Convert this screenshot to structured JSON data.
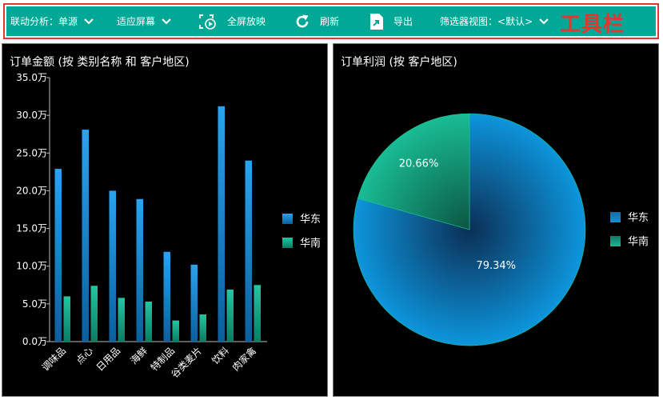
{
  "toolbar": {
    "linkage_label": "联动分析：",
    "linkage_value": "单源",
    "fit_label": "适应屏幕",
    "fullscreen_label": "全屏放映",
    "refresh_label": "刷新",
    "export_label": "导出",
    "filter_view_label": "筛选器视图：",
    "filter_view_value": "<默认>",
    "tag": "工具栏",
    "tag_color": "#e8332e",
    "background_color": "#02a896"
  },
  "colors": {
    "huadong": "#1e8fd8",
    "huanan": "#18b893",
    "panel_bg": "#000000"
  },
  "bar_panel": {
    "title": "订单金额 (按 类别名称 和 客户地区)"
  },
  "pie_panel": {
    "title": "订单利润 (按 客户地区)"
  },
  "chart_data": [
    {
      "type": "bar",
      "title": "订单金额 (按 类别名称 和 客户地区)",
      "categories": [
        "调味品",
        "点心",
        "日用品",
        "海鲜",
        "特制品",
        "谷类麦片",
        "饮料",
        "肉家禽"
      ],
      "series": [
        {
          "name": "华东",
          "values": [
            22.9,
            28.1,
            20.0,
            18.9,
            11.9,
            10.2,
            31.2,
            24.0
          ]
        },
        {
          "name": "华南",
          "values": [
            6.0,
            7.4,
            5.8,
            5.3,
            2.8,
            3.6,
            6.9,
            7.5
          ]
        }
      ],
      "y_ticks": [
        "35.0万",
        "30.0万",
        "25.0万",
        "20.0万",
        "15.0万",
        "10.0万",
        "5.0万",
        "0.0万"
      ],
      "ylim": [
        0,
        35
      ],
      "y_unit": "万",
      "legend": "right"
    },
    {
      "type": "pie",
      "title": "订单利润 (按 客户地区)",
      "slices": [
        {
          "name": "华东",
          "value": 79.34,
          "label": "79.34%"
        },
        {
          "name": "华南",
          "value": 20.66,
          "label": "20.66%"
        }
      ],
      "legend": "right"
    }
  ]
}
